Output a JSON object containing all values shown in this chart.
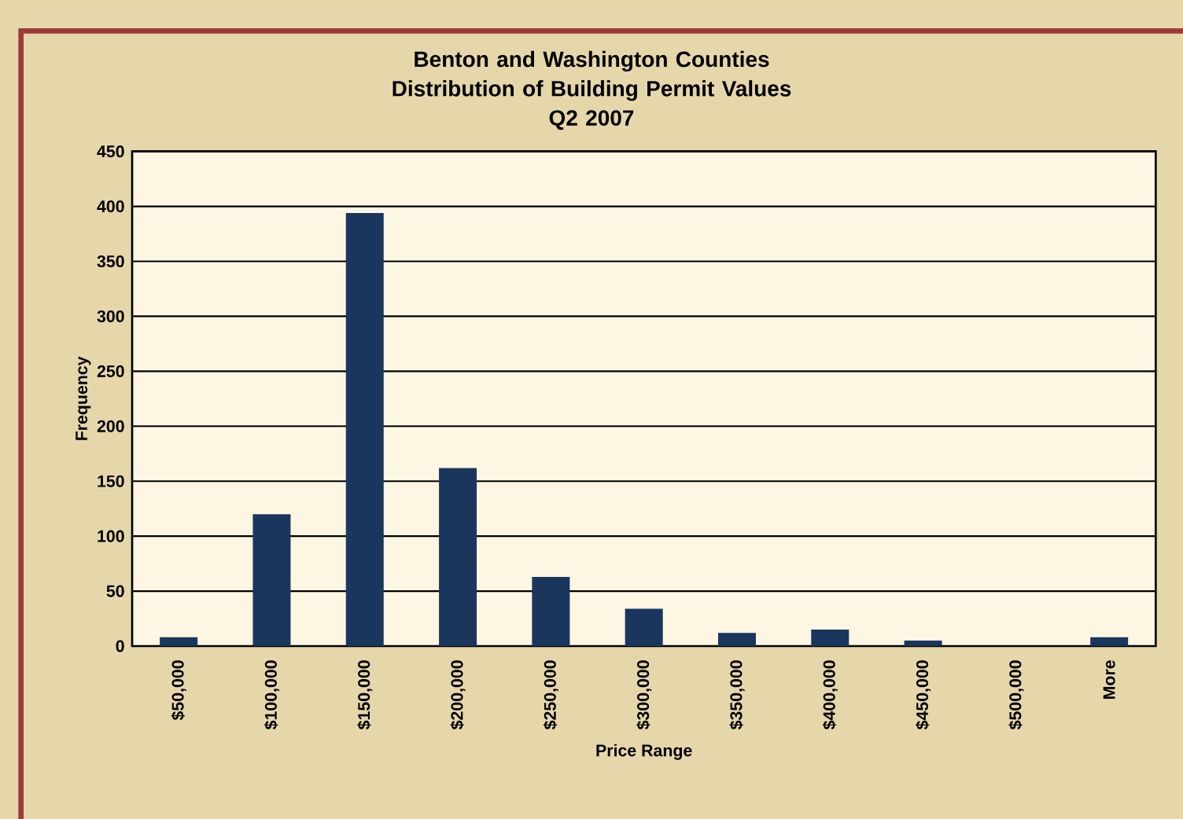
{
  "chart_data": {
    "type": "bar",
    "title": "Benton and Washington Counties Distribution of Building Permit Values",
    "subtitle": "Q2 2007",
    "xlabel": "Price Range",
    "ylabel": "Frequency",
    "categories": [
      "$50,000",
      "$100,000",
      "$150,000",
      "$200,000",
      "$250,000",
      "$300,000",
      "$350,000",
      "$400,000",
      "$450,000",
      "$500,000",
      "More"
    ],
    "values": [
      8,
      120,
      394,
      162,
      63,
      34,
      12,
      15,
      5,
      0,
      8
    ],
    "color": "#1b365d",
    "ylim": [
      0,
      450
    ],
    "yticks": [
      0,
      50,
      100,
      150,
      200,
      250,
      300,
      350,
      400,
      450
    ],
    "grid": "y"
  }
}
